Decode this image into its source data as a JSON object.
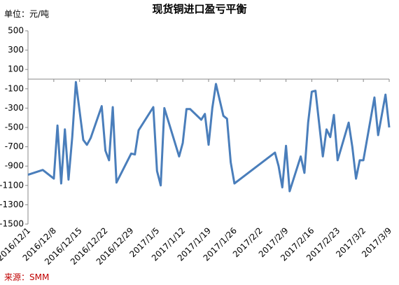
{
  "chart_data": {
    "type": "line",
    "title": "现货铜进口盈亏平衡",
    "y_unit_label": "单位：元/吨",
    "source": "来源：SMM",
    "x": [
      "2016/12/1",
      "2016/12/5",
      "2016/12/8",
      "2016/12/9",
      "2016/12/10",
      "2016/12/11",
      "2016/12/12",
      "2016/12/13",
      "2016/12/14",
      "2016/12/16",
      "2016/12/17",
      "2016/12/18",
      "2016/12/21",
      "2016/12/22",
      "2016/12/23",
      "2016/12/24",
      "2016/12/25",
      "2016/12/29",
      "2016/12/30",
      "2016/12/31",
      "2017/1/4",
      "2017/1/5",
      "2017/1/6",
      "2017/1/7",
      "2017/1/11",
      "2017/1/12",
      "2017/1/13",
      "2017/1/14",
      "2017/1/17",
      "2017/1/18",
      "2017/1/19",
      "2017/1/20",
      "2017/1/21",
      "2017/1/23",
      "2017/1/24",
      "2017/1/25",
      "2017/1/26",
      "2017/2/6",
      "2017/2/7",
      "2017/2/8",
      "2017/2/9",
      "2017/2/10",
      "2017/2/13",
      "2017/2/14",
      "2017/2/15",
      "2017/2/16",
      "2017/2/17",
      "2017/2/19",
      "2017/2/20",
      "2017/2/21",
      "2017/2/22",
      "2017/2/23",
      "2017/2/26",
      "2017/2/27",
      "2017/2/28",
      "2017/3/1",
      "2017/3/2",
      "2017/3/5",
      "2017/3/6",
      "2017/3/8",
      "2017/3/9"
    ],
    "series": [
      {
        "name": "盈亏",
        "color": "#4a7ebb",
        "values": [
          -990,
          -940,
          -1030,
          -480,
          -1080,
          -520,
          -1040,
          -600,
          -30,
          -630,
          -680,
          -610,
          -280,
          -740,
          -840,
          -290,
          -1070,
          -770,
          -780,
          -530,
          -290,
          -950,
          -1100,
          -300,
          -800,
          -660,
          -310,
          -310,
          -420,
          -360,
          -680,
          -300,
          -50,
          -380,
          -410,
          -860,
          -1080,
          -760,
          -900,
          -1120,
          -690,
          -1160,
          -800,
          -970,
          -450,
          -130,
          -120,
          -800,
          -520,
          -600,
          -370,
          -840,
          -450,
          -700,
          -1030,
          -840,
          -840,
          -190,
          -580,
          -160,
          -500
        ]
      }
    ],
    "xlim": [
      "2016/12/1",
      "2017/3/9"
    ],
    "xticks": [
      "2016/12/1",
      "2016/12/8",
      "2016/12/15",
      "2016/12/22",
      "2016/12/29",
      "2017/1/5",
      "2017/1/12",
      "2017/1/19",
      "2017/1/26",
      "2017/2/2",
      "2017/2/9",
      "2017/2/16",
      "2017/2/23",
      "2017/3/2",
      "2017/3/9"
    ],
    "ylim": [
      -1500,
      500
    ],
    "yticks": [
      -1500,
      -1300,
      -1100,
      -900,
      -700,
      -500,
      -300,
      -100,
      100,
      300,
      500
    ],
    "grid": false
  }
}
